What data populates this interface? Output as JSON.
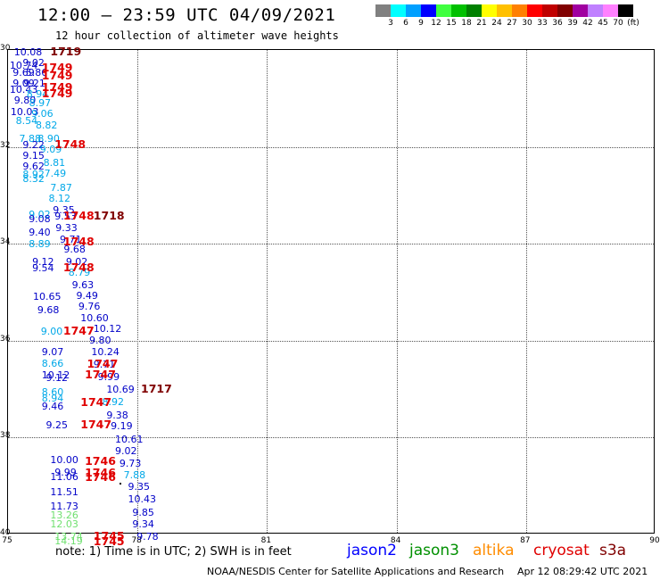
{
  "header": {
    "title": "12:00 – 23:59 UTC 04/09/2021",
    "subtitle": "12 hour collection of altimeter wave heights"
  },
  "colorbar": {
    "colors": [
      "#808080",
      "#00ffff",
      "#00a0ff",
      "#0000ff",
      "#40ff40",
      "#00c000",
      "#008000",
      "#ffff00",
      "#ffc000",
      "#ff8000",
      "#ff0000",
      "#c00000",
      "#800000",
      "#a000a0",
      "#c080ff",
      "#ff80ff",
      "#000000"
    ],
    "ticks": [
      "3",
      "6",
      "9",
      "12",
      "15",
      "18",
      "21",
      "24",
      "27",
      "30",
      "33",
      "36",
      "39",
      "42",
      "45",
      "70",
      "(ft)"
    ]
  },
  "map": {
    "lon_range": [
      75,
      90
    ],
    "lat_range": [
      30,
      40
    ],
    "x_ticks": [
      "75",
      "78",
      "81",
      "84",
      "87",
      "90"
    ],
    "y_ticks": [
      "30",
      "32",
      "34",
      "36",
      "38",
      "40"
    ]
  },
  "chart_data": {
    "type": "scatter",
    "x_label_units": "longitude (°E)",
    "y_label_units": "latitude",
    "observations": [
      {
        "lon": 75.16,
        "lat": 30.05,
        "swh": "10.08",
        "sat": "jason2"
      },
      {
        "lon": 75.36,
        "lat": 30.28,
        "swh": "9.02",
        "sat": "jason2"
      },
      {
        "lon": 75.06,
        "lat": 30.33,
        "swh": "10.74",
        "sat": "jason2"
      },
      {
        "lon": 75.13,
        "lat": 30.47,
        "swh": "9.69",
        "sat": "jason2"
      },
      {
        "lon": 75.43,
        "lat": 30.47,
        "swh": "5.86",
        "sat": "jason2"
      },
      {
        "lon": 75.13,
        "lat": 30.7,
        "swh": "9.09",
        "sat": "jason2"
      },
      {
        "lon": 75.38,
        "lat": 30.7,
        "swh": "9.21",
        "sat": "jason2"
      },
      {
        "lon": 75.06,
        "lat": 30.82,
        "swh": "10.43",
        "sat": "jason2"
      },
      {
        "lon": 75.45,
        "lat": 30.92,
        "swh": "8.94",
        "sat": "altika_cyan"
      },
      {
        "lon": 75.16,
        "lat": 31.05,
        "swh": "9.80",
        "sat": "jason2"
      },
      {
        "lon": 75.51,
        "lat": 31.1,
        "swh": "8.97",
        "sat": "altika_cyan"
      },
      {
        "lon": 75.08,
        "lat": 31.28,
        "swh": "10.03",
        "sat": "jason2"
      },
      {
        "lon": 75.56,
        "lat": 31.33,
        "swh": "9.06",
        "sat": "altika_cyan"
      },
      {
        "lon": 75.2,
        "lat": 31.47,
        "swh": "8.54",
        "sat": "altika_cyan"
      },
      {
        "lon": 75.66,
        "lat": 31.57,
        "swh": "8.82",
        "sat": "altika_cyan"
      },
      {
        "lon": 75.28,
        "lat": 31.84,
        "swh": "7.88",
        "sat": "altika_cyan"
      },
      {
        "lon": 75.71,
        "lat": 31.84,
        "swh": "8.90",
        "sat": "altika_cyan"
      },
      {
        "lon": 75.36,
        "lat": 31.97,
        "swh": "9.22",
        "sat": "jason2"
      },
      {
        "lon": 75.76,
        "lat": 32.07,
        "swh": "9.09",
        "sat": "altika_cyan"
      },
      {
        "lon": 75.36,
        "lat": 32.19,
        "swh": "9.15",
        "sat": "jason2"
      },
      {
        "lon": 75.84,
        "lat": 32.33,
        "swh": "8.81",
        "sat": "altika_cyan"
      },
      {
        "lon": 75.36,
        "lat": 32.42,
        "swh": "9.62",
        "sat": "jason2"
      },
      {
        "lon": 75.36,
        "lat": 32.58,
        "swh": "8.92",
        "sat": "altika_cyan"
      },
      {
        "lon": 75.86,
        "lat": 32.56,
        "swh": "7.49",
        "sat": "altika_cyan"
      },
      {
        "lon": 75.36,
        "lat": 32.67,
        "swh": "8.32",
        "sat": "altika_cyan"
      },
      {
        "lon": 76.0,
        "lat": 32.85,
        "swh": "7.87",
        "sat": "altika_cyan"
      },
      {
        "lon": 75.96,
        "lat": 33.08,
        "swh": "8.12",
        "sat": "altika_cyan"
      },
      {
        "lon": 76.06,
        "lat": 33.31,
        "swh": "9.35",
        "sat": "jason2"
      },
      {
        "lon": 75.5,
        "lat": 33.4,
        "swh": "9.02",
        "sat": "altika_cyan"
      },
      {
        "lon": 75.5,
        "lat": 33.5,
        "swh": "9.08",
        "sat": "jason2"
      },
      {
        "lon": 76.1,
        "lat": 33.45,
        "swh": "9.53",
        "sat": "jason2"
      },
      {
        "lon": 76.12,
        "lat": 33.68,
        "swh": "9.33",
        "sat": "jason2"
      },
      {
        "lon": 75.5,
        "lat": 33.78,
        "swh": "9.40",
        "sat": "jason2"
      },
      {
        "lon": 76.22,
        "lat": 33.92,
        "swh": "9.71",
        "sat": "jason2"
      },
      {
        "lon": 75.5,
        "lat": 34.02,
        "swh": "8.89",
        "sat": "altika_cyan"
      },
      {
        "lon": 76.31,
        "lat": 34.12,
        "swh": "9.68",
        "sat": "jason2"
      },
      {
        "lon": 75.58,
        "lat": 34.38,
        "swh": "9.12",
        "sat": "jason2"
      },
      {
        "lon": 76.36,
        "lat": 34.38,
        "swh": "9.02",
        "sat": "jason2"
      },
      {
        "lon": 75.58,
        "lat": 34.52,
        "swh": "9.54",
        "sat": "jason2"
      },
      {
        "lon": 76.42,
        "lat": 34.61,
        "swh": "8.79",
        "sat": "altika_cyan"
      },
      {
        "lon": 76.5,
        "lat": 34.86,
        "swh": "9.63",
        "sat": "jason2"
      },
      {
        "lon": 75.6,
        "lat": 35.11,
        "swh": "10.65",
        "sat": "jason2"
      },
      {
        "lon": 76.6,
        "lat": 35.08,
        "swh": "9.49",
        "sat": "jason2"
      },
      {
        "lon": 76.65,
        "lat": 35.31,
        "swh": "9.76",
        "sat": "jason2"
      },
      {
        "lon": 75.7,
        "lat": 35.38,
        "swh": "9.68",
        "sat": "jason2"
      },
      {
        "lon": 76.7,
        "lat": 35.55,
        "swh": "10.60",
        "sat": "jason2"
      },
      {
        "lon": 75.78,
        "lat": 35.82,
        "swh": "9.00",
        "sat": "altika_cyan"
      },
      {
        "lon": 77.0,
        "lat": 35.77,
        "swh": "10.12",
        "sat": "jason2"
      },
      {
        "lon": 76.9,
        "lat": 36.0,
        "swh": "9.80",
        "sat": "jason2"
      },
      {
        "lon": 75.8,
        "lat": 36.24,
        "swh": "9.07",
        "sat": "jason2"
      },
      {
        "lon": 76.95,
        "lat": 36.24,
        "swh": "10.24",
        "sat": "jason2"
      },
      {
        "lon": 75.8,
        "lat": 36.48,
        "swh": "8.66",
        "sat": "altika_cyan"
      },
      {
        "lon": 77.0,
        "lat": 36.51,
        "swh": "9.71",
        "sat": "jason2"
      },
      {
        "lon": 75.8,
        "lat": 36.72,
        "swh": "10.12",
        "sat": "jason2"
      },
      {
        "lon": 77.1,
        "lat": 36.75,
        "swh": "9.99",
        "sat": "jason2"
      },
      {
        "lon": 75.9,
        "lat": 36.78,
        "swh": "9.12",
        "sat": "jason2"
      },
      {
        "lon": 77.3,
        "lat": 37.02,
        "swh": "10.69",
        "sat": "jason2"
      },
      {
        "lon": 75.8,
        "lat": 37.08,
        "swh": "8.60",
        "sat": "altika_cyan"
      },
      {
        "lon": 75.8,
        "lat": 37.2,
        "swh": "8.94",
        "sat": "altika_cyan"
      },
      {
        "lon": 77.2,
        "lat": 37.28,
        "swh": "8.92",
        "sat": "altika_cyan"
      },
      {
        "lon": 75.8,
        "lat": 37.36,
        "swh": "9.46",
        "sat": "jason2"
      },
      {
        "lon": 77.3,
        "lat": 37.55,
        "swh": "9.38",
        "sat": "jason2"
      },
      {
        "lon": 75.9,
        "lat": 37.75,
        "swh": "9.25",
        "sat": "jason2"
      },
      {
        "lon": 77.4,
        "lat": 37.78,
        "swh": "9.19",
        "sat": "jason2"
      },
      {
        "lon": 77.5,
        "lat": 38.04,
        "swh": "10.61",
        "sat": "jason2"
      },
      {
        "lon": 77.5,
        "lat": 38.28,
        "swh": "9.02",
        "sat": "jason2"
      },
      {
        "lon": 76.0,
        "lat": 38.48,
        "swh": "10.00",
        "sat": "jason2"
      },
      {
        "lon": 77.6,
        "lat": 38.55,
        "swh": "9.73",
        "sat": "jason2"
      },
      {
        "lon": 76.1,
        "lat": 38.73,
        "swh": "9.99",
        "sat": "jason2"
      },
      {
        "lon": 76.0,
        "lat": 38.82,
        "swh": "11.06",
        "sat": "jason2"
      },
      {
        "lon": 77.7,
        "lat": 38.78,
        "swh": "7.88",
        "sat": "altika_cyan"
      },
      {
        "lon": 77.8,
        "lat": 39.02,
        "swh": "9.35",
        "sat": "jason2"
      },
      {
        "lon": 76.0,
        "lat": 39.13,
        "swh": "11.51",
        "sat": "jason2"
      },
      {
        "lon": 77.8,
        "lat": 39.28,
        "swh": "10.43",
        "sat": "jason2"
      },
      {
        "lon": 76.0,
        "lat": 39.42,
        "swh": "11.73",
        "sat": "jason2"
      },
      {
        "lon": 77.9,
        "lat": 39.55,
        "swh": "9.85",
        "sat": "jason2"
      },
      {
        "lon": 76.0,
        "lat": 39.62,
        "swh": "13.26",
        "sat": "jason3_light"
      },
      {
        "lon": 76.0,
        "lat": 39.8,
        "swh": "12.03",
        "sat": "jason3_light"
      },
      {
        "lon": 77.9,
        "lat": 39.8,
        "swh": "9.34",
        "sat": "jason2"
      },
      {
        "lon": 76.1,
        "lat": 40.05,
        "swh": "13.74",
        "sat": "jason3_light"
      },
      {
        "lon": 76.1,
        "lat": 40.15,
        "swh": "14.19",
        "sat": "jason3_light"
      },
      {
        "lon": 78.0,
        "lat": 40.05,
        "swh": "9.78",
        "sat": "jason2"
      }
    ],
    "time_labels": [
      {
        "lon": 76.0,
        "lat": 30.05,
        "text": "1719",
        "color": "#800000"
      },
      {
        "lon": 75.8,
        "lat": 30.38,
        "text": "1749",
        "color": "#e00000"
      },
      {
        "lon": 75.8,
        "lat": 30.55,
        "text": "1749",
        "color": "#e00000"
      },
      {
        "lon": 75.8,
        "lat": 30.8,
        "text": "1749",
        "color": "#e00000"
      },
      {
        "lon": 75.8,
        "lat": 30.92,
        "text": "1749",
        "color": "#e00000"
      },
      {
        "lon": 76.1,
        "lat": 31.97,
        "text": "1748",
        "color": "#e00000"
      },
      {
        "lon": 76.3,
        "lat": 33.45,
        "text": "1748",
        "color": "#e00000"
      },
      {
        "lon": 77.0,
        "lat": 33.45,
        "text": "1718",
        "color": "#800000"
      },
      {
        "lon": 76.3,
        "lat": 33.98,
        "text": "1748",
        "color": "#e00000"
      },
      {
        "lon": 76.3,
        "lat": 34.52,
        "text": "1748",
        "color": "#e00000"
      },
      {
        "lon": 76.3,
        "lat": 35.82,
        "text": "1747",
        "color": "#e00000"
      },
      {
        "lon": 76.85,
        "lat": 36.5,
        "text": "1747",
        "color": "#e00000"
      },
      {
        "lon": 76.8,
        "lat": 36.73,
        "text": "1747",
        "color": "#e00000"
      },
      {
        "lon": 78.1,
        "lat": 37.02,
        "text": "1717",
        "color": "#800000"
      },
      {
        "lon": 76.7,
        "lat": 37.3,
        "text": "1747",
        "color": "#e00000"
      },
      {
        "lon": 76.7,
        "lat": 37.75,
        "text": "1747",
        "color": "#e00000"
      },
      {
        "lon": 76.8,
        "lat": 38.5,
        "text": "1746",
        "color": "#e00000"
      },
      {
        "lon": 76.8,
        "lat": 38.75,
        "text": "1746",
        "color": "#e00000"
      },
      {
        "lon": 76.8,
        "lat": 38.84,
        "text": "1746",
        "color": "#e00000"
      },
      {
        "lon": 77.0,
        "lat": 40.05,
        "text": "1745",
        "color": "#e00000"
      },
      {
        "lon": 77.0,
        "lat": 40.16,
        "text": "1745",
        "color": "#e00000"
      }
    ],
    "markers": [
      {
        "lon": 77.6,
        "lat": 38.95
      }
    ],
    "sat_colors": {
      "jason2": "#0000c8",
      "altika_cyan": "#00a8e8",
      "jason3_light": "#70e070"
    }
  },
  "note": "note: 1) Time is in UTC; 2) SWH is in feet",
  "legend": [
    {
      "label": "jason2",
      "color": "#0000ff"
    },
    {
      "label": "jason3",
      "color": "#009000"
    },
    {
      "label": "altika",
      "color": "#ff8c00"
    },
    {
      "label": "cryosat",
      "color": "#e00000"
    },
    {
      "label": "s3a",
      "color": "#800000"
    }
  ],
  "footer": {
    "credit": "NOAA/NESDIS Center for Satellite Applications and Research",
    "timestamp": "Apr 12 08:29:42 UTC 2021"
  }
}
